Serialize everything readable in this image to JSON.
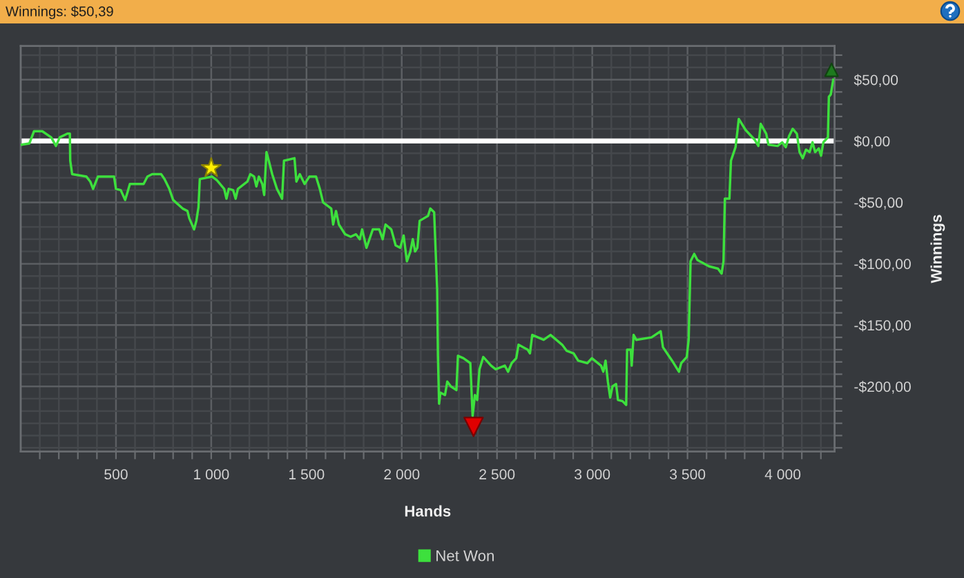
{
  "chart_data": {
    "type": "line",
    "title": "Winnings: $50,39",
    "xlabel": "Hands",
    "ylabel": "Winnings",
    "xlim": [
      0,
      4272
    ],
    "ylim": [
      -253,
      77.5
    ],
    "xticks": [
      {
        "value": 100,
        "label": null
      },
      {
        "value": 200,
        "label": null
      },
      {
        "value": 300,
        "label": null
      },
      {
        "value": 400,
        "label": null
      },
      {
        "value": 500,
        "label": "500"
      },
      {
        "value": 600,
        "label": null
      },
      {
        "value": 700,
        "label": null
      },
      {
        "value": 800,
        "label": null
      },
      {
        "value": 900,
        "label": null
      },
      {
        "value": 1000,
        "label": "1 000"
      },
      {
        "value": 1100,
        "label": null
      },
      {
        "value": 1200,
        "label": null
      },
      {
        "value": 1300,
        "label": null
      },
      {
        "value": 1400,
        "label": null
      },
      {
        "value": 1500,
        "label": "1 500"
      },
      {
        "value": 1600,
        "label": null
      },
      {
        "value": 1700,
        "label": null
      },
      {
        "value": 1800,
        "label": null
      },
      {
        "value": 1900,
        "label": null
      },
      {
        "value": 2000,
        "label": "2 000"
      },
      {
        "value": 2100,
        "label": null
      },
      {
        "value": 2200,
        "label": null
      },
      {
        "value": 2300,
        "label": null
      },
      {
        "value": 2400,
        "label": null
      },
      {
        "value": 2500,
        "label": "2 500"
      },
      {
        "value": 2600,
        "label": null
      },
      {
        "value": 2700,
        "label": null
      },
      {
        "value": 2800,
        "label": null
      },
      {
        "value": 2900,
        "label": null
      },
      {
        "value": 3000,
        "label": "3 000"
      },
      {
        "value": 3100,
        "label": null
      },
      {
        "value": 3200,
        "label": null
      },
      {
        "value": 3300,
        "label": null
      },
      {
        "value": 3400,
        "label": null
      },
      {
        "value": 3500,
        "label": "3 500"
      },
      {
        "value": 3600,
        "label": null
      },
      {
        "value": 3700,
        "label": null
      },
      {
        "value": 3800,
        "label": null
      },
      {
        "value": 3900,
        "label": null
      },
      {
        "value": 4000,
        "label": "4 000"
      },
      {
        "value": 4100,
        "label": null
      },
      {
        "value": 4200,
        "label": null
      }
    ],
    "yticks": [
      {
        "value": -250,
        "label": null
      },
      {
        "value": -240,
        "label": null
      },
      {
        "value": -230,
        "label": null
      },
      {
        "value": -220,
        "label": null
      },
      {
        "value": -210,
        "label": null
      },
      {
        "value": -200,
        "label": "-$200,00"
      },
      {
        "value": -190,
        "label": null
      },
      {
        "value": -180,
        "label": null
      },
      {
        "value": -170,
        "label": null
      },
      {
        "value": -160,
        "label": null
      },
      {
        "value": -150,
        "label": "-$150,00"
      },
      {
        "value": -140,
        "label": null
      },
      {
        "value": -130,
        "label": null
      },
      {
        "value": -120,
        "label": null
      },
      {
        "value": -110,
        "label": null
      },
      {
        "value": -100,
        "label": "-$100,00"
      },
      {
        "value": -90,
        "label": null
      },
      {
        "value": -80,
        "label": null
      },
      {
        "value": -70,
        "label": null
      },
      {
        "value": -60,
        "label": null
      },
      {
        "value": -50,
        "label": "-$50,00"
      },
      {
        "value": -40,
        "label": null
      },
      {
        "value": -30,
        "label": null
      },
      {
        "value": -20,
        "label": null
      },
      {
        "value": -10,
        "label": null
      },
      {
        "value": 0,
        "label": "$0,00"
      },
      {
        "value": 10,
        "label": null
      },
      {
        "value": 20,
        "label": null
      },
      {
        "value": 30,
        "label": null
      },
      {
        "value": 40,
        "label": null
      },
      {
        "value": 50,
        "label": "$50,00"
      },
      {
        "value": 60,
        "label": null
      },
      {
        "value": 70,
        "label": null
      }
    ],
    "grid": true,
    "legend": "bottom",
    "ref_lines": [
      {
        "axis": "y",
        "value": 0,
        "color": "#ffffff"
      }
    ],
    "series": [
      {
        "name": "Net Won",
        "color": "#3de03d",
        "x": [
          5,
          45,
          70,
          113,
          160,
          185,
          205,
          245,
          258,
          260,
          270,
          345,
          365,
          380,
          405,
          490,
          500,
          525,
          548,
          560,
          573,
          645,
          665,
          690,
          737,
          755,
          780,
          800,
          850,
          875,
          885,
          910,
          922,
          933,
          940,
          1005,
          1030,
          1068,
          1080,
          1092,
          1115,
          1128,
          1140,
          1190,
          1205,
          1225,
          1237,
          1250,
          1268,
          1278,
          1290,
          1302,
          1320,
          1345,
          1372,
          1382,
          1437,
          1447,
          1465,
          1490,
          1515,
          1550,
          1570,
          1587,
          1630,
          1640,
          1655,
          1670,
          1703,
          1732,
          1760,
          1780,
          1792,
          1815,
          1848,
          1882,
          1900,
          1915,
          1945,
          1968,
          1992,
          2010,
          2027,
          2045,
          2058,
          2070,
          2082,
          2094,
          2138,
          2150,
          2170,
          2186,
          2190,
          2196,
          2203,
          2227,
          2239,
          2258,
          2287,
          2295,
          2324,
          2360,
          2372,
          2384,
          2396,
          2408,
          2428,
          2469,
          2493,
          2541,
          2558,
          2577,
          2601,
          2613,
          2661,
          2673,
          2685,
          2745,
          2781,
          2842,
          2866,
          2902,
          2926,
          2974,
          2998,
          3046,
          3058,
          3070,
          3082,
          3094,
          3106,
          3125,
          3135,
          3159,
          3178,
          3183,
          3202,
          3207,
          3217,
          3231,
          3311,
          3359,
          3371,
          3419,
          3455,
          3467,
          3496,
          3506,
          3516,
          3535,
          3552,
          3612,
          3660,
          3679,
          3689,
          3696,
          3720,
          3728,
          3752,
          3762,
          3769,
          3805,
          3853,
          3872,
          3884,
          3913,
          3925,
          3973,
          3997,
          4016,
          4033,
          4052,
          4074,
          4088,
          4105,
          4122,
          4141,
          4156,
          4170,
          4189,
          4201,
          4213,
          4237,
          4242,
          4252,
          4265
        ],
        "values": [
          -3,
          -2,
          8,
          8,
          3,
          -4,
          3,
          6,
          6,
          -16,
          -27,
          -29,
          -33,
          -39,
          -29,
          -29,
          -39,
          -40,
          -48,
          -42,
          -35,
          -35,
          -29,
          -27,
          -27,
          -31,
          -39,
          -48,
          -55,
          -57,
          -63,
          -72,
          -65,
          -54,
          -31,
          -29,
          -32,
          -39,
          -47,
          -39,
          -40,
          -47,
          -39,
          -33,
          -27,
          -29,
          -37,
          -29,
          -35,
          -44,
          -9,
          -16,
          -27,
          -39,
          -47,
          -16,
          -14,
          -33,
          -27,
          -35,
          -29,
          -29,
          -39,
          -50,
          -55,
          -68,
          -57,
          -68,
          -76,
          -78,
          -76,
          -80,
          -72,
          -87,
          -72,
          -72,
          -80,
          -68,
          -72,
          -85,
          -87,
          -77,
          -98,
          -90,
          -80,
          -90,
          -87,
          -65,
          -61,
          -55,
          -58,
          -121,
          -175,
          -214,
          -205,
          -207,
          -196,
          -200,
          -203,
          -175,
          -177,
          -181,
          -224,
          -207,
          -211,
          -186,
          -176,
          -183,
          -186,
          -183,
          -188,
          -181,
          -177,
          -166,
          -170,
          -173,
          -158,
          -162,
          -158,
          -166,
          -171,
          -173,
          -179,
          -181,
          -177,
          -183,
          -188,
          -179,
          -196,
          -209,
          -200,
          -198,
          -211,
          -212,
          -215,
          -170,
          -170,
          -183,
          -158,
          -162,
          -160,
          -155,
          -168,
          -179,
          -188,
          -181,
          -176,
          -162,
          -98,
          -92,
          -97,
          -102,
          -104,
          -108,
          -98,
          -47,
          -47,
          -16,
          -5,
          8,
          18,
          9,
          1,
          -4,
          14,
          6,
          -3,
          -4,
          -1,
          -5,
          4,
          10,
          6,
          -9,
          -14,
          -7,
          -9,
          -1,
          -9,
          -6,
          -12,
          -1,
          3,
          36,
          38,
          50
        ]
      },
      {
        "type": "scatter",
        "marker": "star",
        "color": "#ffee00",
        "x": [
          1000
        ],
        "values": [
          -22
        ]
      },
      {
        "type": "scatter",
        "marker": "triangle-down",
        "color": "#e00000",
        "x": [
          2377
        ],
        "values": [
          -233
        ]
      },
      {
        "type": "scatter",
        "marker": "triangle",
        "color": "#1e7a1e",
        "x": [
          4256
        ],
        "values": [
          58
        ]
      }
    ]
  }
}
